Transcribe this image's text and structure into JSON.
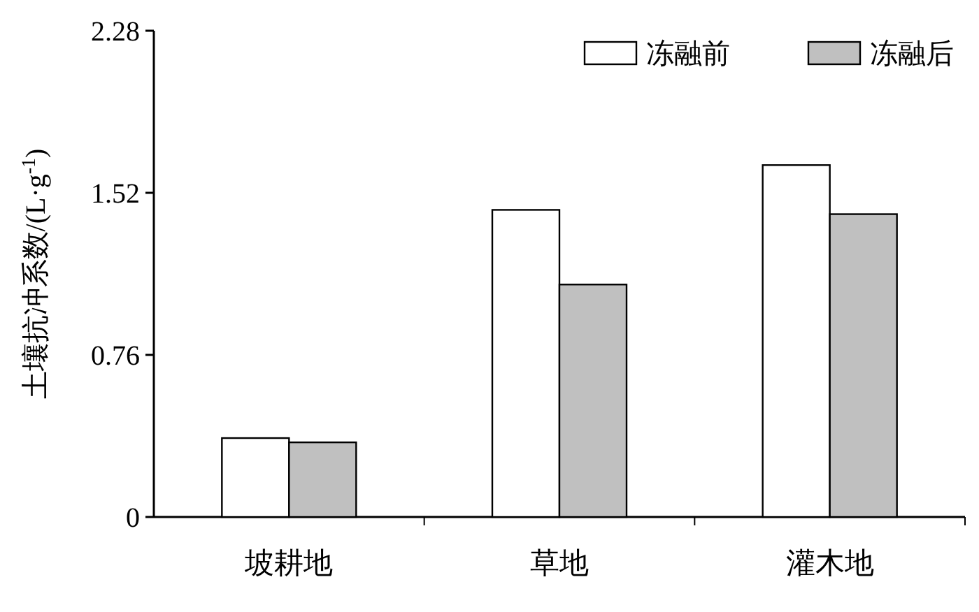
{
  "chart_data": {
    "type": "bar",
    "ylabel": "土壤抗冲系数/(L·g$^{-1}$)",
    "categories": [
      "坡耕地",
      "草地",
      "灌木地"
    ],
    "series": [
      {
        "name": "冻融前",
        "color": "#ffffff",
        "values": [
          0.37,
          1.44,
          1.65
        ]
      },
      {
        "name": "冻融后",
        "color": "#c0c0c0",
        "values": [
          0.35,
          1.09,
          1.42
        ]
      }
    ],
    "ylim": [
      0,
      2.28
    ],
    "yticks": [
      0,
      0.76,
      1.52,
      2.28
    ],
    "legend": "top right"
  }
}
